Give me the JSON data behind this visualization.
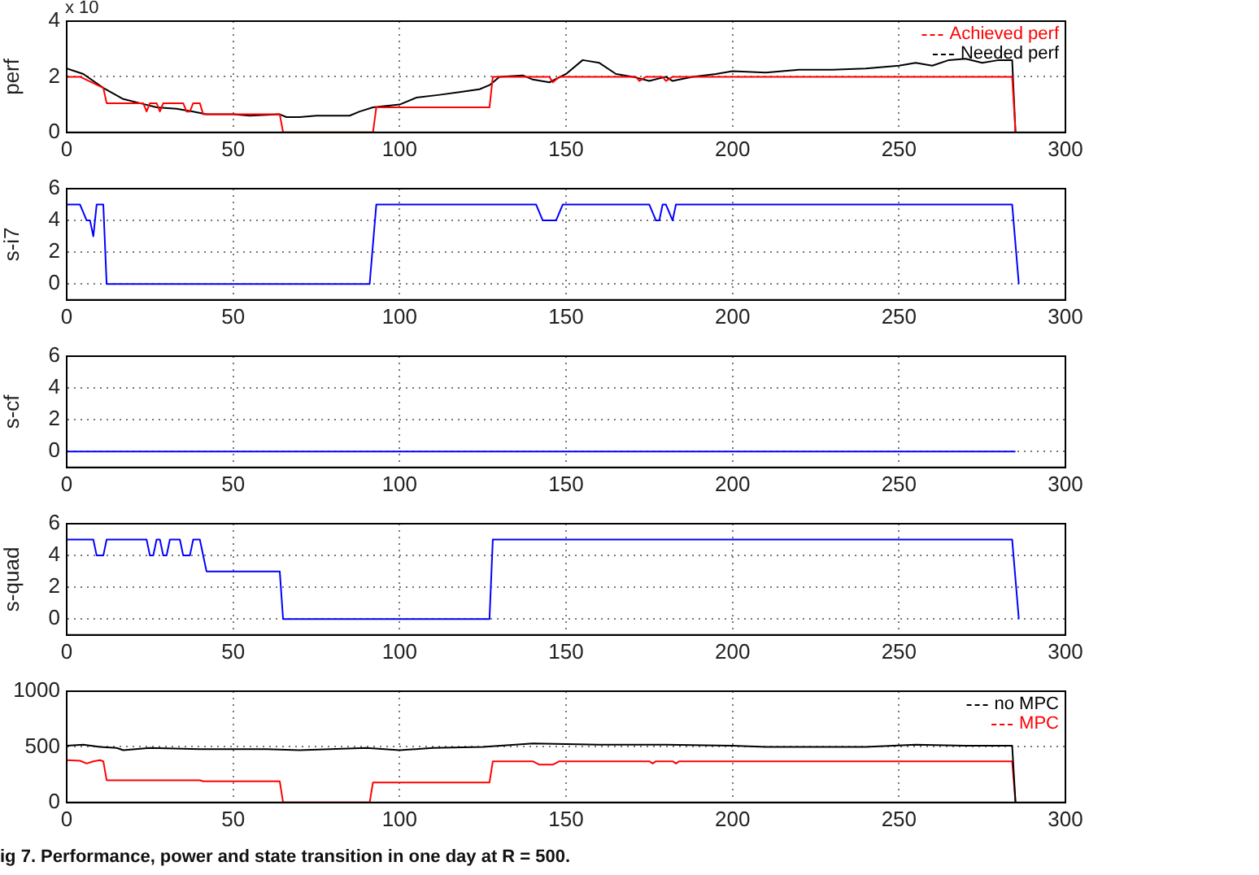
{
  "chart_data": [
    {
      "type": "line",
      "title": "ig 7. Performance, power and state transition in one day at R = 500.",
      "ylabel": "perf",
      "annotations": [
        "x 10"
      ],
      "xlim": [
        0,
        300
      ],
      "xticks": [
        0,
        50,
        100,
        150,
        200,
        250,
        300
      ],
      "ylim": [
        0,
        4
      ],
      "yticks": [
        0,
        2,
        4
      ],
      "grid": true,
      "legend": "top right",
      "series": [
        {
          "name": "Achieved perf",
          "color": "#ff0000",
          "x": [
            0,
            4,
            11,
            12,
            23,
            24,
            25,
            27,
            28,
            29,
            30,
            31,
            35,
            36,
            37,
            38,
            40,
            41,
            64,
            65,
            92,
            93,
            127,
            128,
            145,
            146,
            148,
            171,
            172,
            174,
            179,
            180,
            182,
            284,
            285
          ],
          "values": [
            2,
            2,
            1.6,
            1.05,
            1.05,
            0.75,
            1.05,
            1.05,
            0.75,
            1.05,
            1.05,
            1.05,
            1.05,
            0.75,
            0.75,
            1.05,
            1.05,
            0.65,
            0.65,
            0,
            0,
            0.9,
            0.9,
            2,
            2,
            1.8,
            2,
            2,
            1.85,
            2,
            2,
            1.85,
            2,
            2,
            0
          ]
        },
        {
          "name": "Needed perf",
          "color": "#000000",
          "x": [
            0,
            5,
            11,
            17,
            22,
            27,
            33,
            38,
            42,
            50,
            55,
            64,
            66,
            70,
            75,
            85,
            88,
            92,
            100,
            105,
            112,
            118,
            124,
            127,
            130,
            137,
            140,
            145,
            150,
            155,
            160,
            165,
            170,
            175,
            180,
            182,
            188,
            195,
            200,
            210,
            220,
            230,
            240,
            250,
            255,
            260,
            265,
            270,
            275,
            280,
            284,
            285
          ],
          "values": [
            2.3,
            2.1,
            1.6,
            1.2,
            1.05,
            0.9,
            0.85,
            0.75,
            0.65,
            0.65,
            0.6,
            0.65,
            0.55,
            0.55,
            0.6,
            0.6,
            0.75,
            0.9,
            1,
            1.25,
            1.35,
            1.45,
            1.55,
            1.7,
            2,
            2.05,
            1.9,
            1.8,
            2.1,
            2.6,
            2.5,
            2.1,
            2,
            1.85,
            2,
            1.85,
            2,
            2.1,
            2.2,
            2.15,
            2.25,
            2.25,
            2.3,
            2.4,
            2.5,
            2.4,
            2.6,
            2.65,
            2.5,
            2.6,
            2.6,
            0
          ]
        }
      ]
    },
    {
      "type": "line",
      "ylabel": "s-i7",
      "xlim": [
        0,
        300
      ],
      "xticks": [
        0,
        50,
        100,
        150,
        200,
        250,
        300
      ],
      "ylim": [
        -1,
        6
      ],
      "yticks": [
        0,
        2,
        4,
        6
      ],
      "grid": true,
      "series": [
        {
          "color": "#0000ff",
          "x": [
            0,
            4,
            6,
            7,
            8,
            9,
            11,
            12,
            91,
            93,
            141,
            143,
            147,
            149,
            175,
            177,
            178,
            179,
            180,
            182,
            183,
            284,
            286
          ],
          "values": [
            5,
            5,
            4,
            4,
            3,
            5,
            5,
            0,
            0,
            5,
            5,
            4,
            4,
            5,
            5,
            4,
            4,
            5,
            5,
            4,
            5,
            5,
            0
          ]
        }
      ]
    },
    {
      "type": "line",
      "ylabel": "s-cf",
      "xlim": [
        0,
        300
      ],
      "xticks": [
        0,
        50,
        100,
        150,
        200,
        250,
        300
      ],
      "ylim": [
        -1,
        6
      ],
      "yticks": [
        0,
        2,
        4,
        6
      ],
      "grid": true,
      "series": [
        {
          "color": "#0000ff",
          "x": [
            0,
            285
          ],
          "values": [
            0,
            0
          ]
        }
      ]
    },
    {
      "type": "line",
      "ylabel": "s-quad",
      "xlim": [
        0,
        300
      ],
      "xticks": [
        0,
        50,
        100,
        150,
        200,
        250,
        300
      ],
      "ylim": [
        -1,
        6
      ],
      "yticks": [
        0,
        2,
        4,
        6
      ],
      "grid": true,
      "series": [
        {
          "color": "#0000ff",
          "x": [
            0,
            8,
            9,
            11,
            12,
            24,
            25,
            26,
            27,
            28,
            29,
            30,
            31,
            34,
            35,
            37,
            38,
            40,
            42,
            64,
            65,
            127,
            128,
            284,
            286
          ],
          "values": [
            5,
            5,
            4,
            4,
            5,
            5,
            4,
            4,
            5,
            5,
            4,
            4,
            5,
            5,
            4,
            4,
            5,
            5,
            3,
            3,
            0,
            0,
            5,
            5,
            0
          ]
        }
      ]
    },
    {
      "type": "line",
      "xlim": [
        0,
        300
      ],
      "xticks": [
        0,
        50,
        100,
        150,
        200,
        250,
        300
      ],
      "ylim": [
        0,
        1000
      ],
      "yticks": [
        0,
        500,
        1000
      ],
      "grid": true,
      "legend": "top right",
      "series": [
        {
          "name": "no MPC",
          "color": "#000000",
          "x": [
            0,
            5,
            10,
            15,
            17,
            25,
            40,
            60,
            70,
            90,
            100,
            110,
            125,
            140,
            160,
            180,
            200,
            210,
            240,
            255,
            270,
            284,
            285
          ],
          "values": [
            510,
            520,
            500,
            490,
            470,
            490,
            480,
            480,
            470,
            490,
            470,
            490,
            500,
            530,
            520,
            520,
            510,
            500,
            500,
            520,
            510,
            510,
            0
          ]
        },
        {
          "name": "MPC",
          "color": "#ff0000",
          "x": [
            0,
            4,
            6,
            8,
            10,
            11,
            12,
            40,
            41,
            64,
            65,
            91,
            92,
            127,
            128,
            140,
            142,
            146,
            148,
            175,
            176,
            177,
            182,
            183,
            184,
            284,
            285
          ],
          "values": [
            380,
            375,
            350,
            370,
            380,
            370,
            200,
            200,
            190,
            190,
            0,
            0,
            180,
            180,
            370,
            370,
            340,
            340,
            370,
            370,
            350,
            370,
            370,
            350,
            370,
            370,
            0
          ]
        }
      ]
    }
  ]
}
